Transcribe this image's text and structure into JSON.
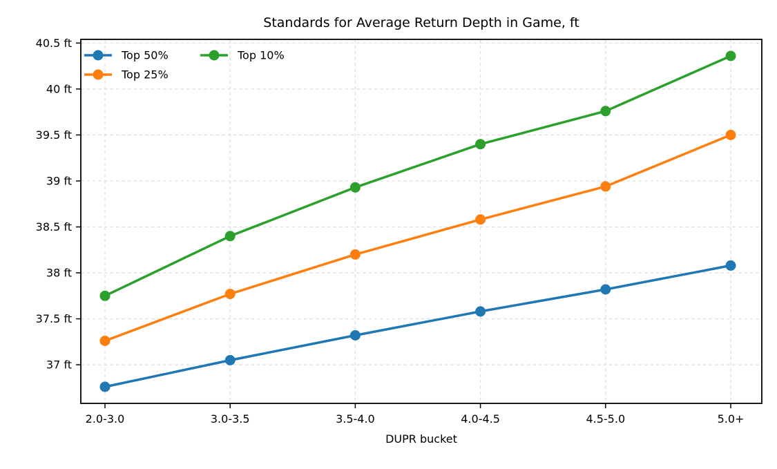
{
  "chart_data": {
    "type": "line",
    "title": "Standards for Average Return Depth in Game, ft",
    "xlabel": "DUPR bucket",
    "ylabel": "",
    "categories": [
      "2.0-3.0",
      "3.0-3.5",
      "3.5-4.0",
      "4.0-4.5",
      "4.5-5.0",
      "5.0+"
    ],
    "series": [
      {
        "name": "Top 50%",
        "color": "#1f77b4",
        "values": [
          36.76,
          37.05,
          37.32,
          37.58,
          37.82,
          38.08
        ]
      },
      {
        "name": "Top 25%",
        "color": "#ff7f0e",
        "values": [
          37.26,
          37.77,
          38.2,
          38.58,
          38.94,
          39.5
        ]
      },
      {
        "name": "Top 10%",
        "color": "#2ca02c",
        "values": [
          37.75,
          38.4,
          38.93,
          39.4,
          39.76,
          40.36
        ]
      }
    ],
    "yticks": [
      37,
      37.5,
      38,
      38.5,
      39,
      39.5,
      40,
      40.5
    ],
    "ytick_labels": [
      "37 ft",
      "37.5 ft",
      "38 ft",
      "38.5 ft",
      "39 ft",
      "39.5 ft",
      "40 ft",
      "40.5 ft"
    ],
    "ylim": [
      36.58,
      40.54
    ],
    "grid": true,
    "grid_color": "#dcdcdc",
    "legend_position": "upper left",
    "legend_columns": 2,
    "marker": "circle",
    "background_color": "#ffffff",
    "spine_color": "#000000"
  }
}
